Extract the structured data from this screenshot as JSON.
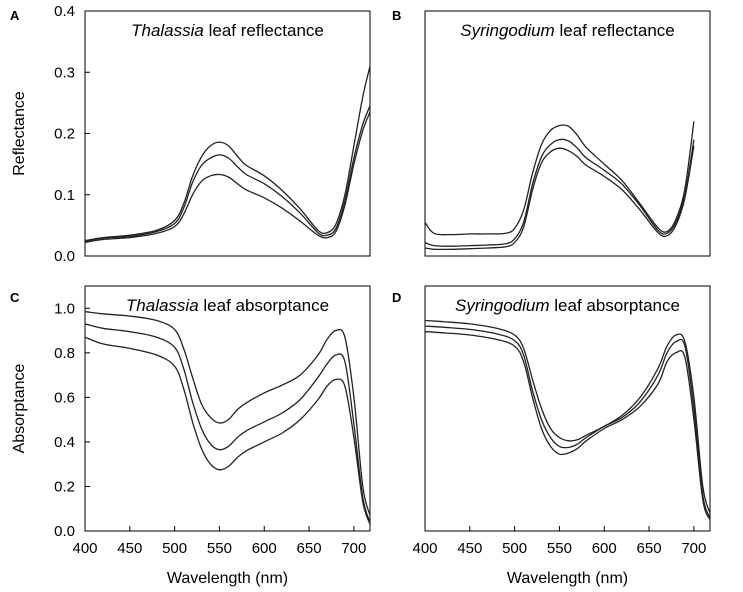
{
  "chart_data": [
    {
      "panel": "A",
      "type": "line",
      "title_genus": "Thalassia",
      "title_rest": " leaf reflectance",
      "xlabel": "",
      "ylabel": "Reflectance",
      "xlim": [
        400,
        718
      ],
      "ylim": [
        0,
        0.4
      ],
      "xticks": [],
      "yticks": [
        0.0,
        0.1,
        0.2,
        0.3,
        0.4
      ],
      "ytick_labels": [
        "0.0",
        "0.1",
        "0.2",
        "0.3",
        "0.4"
      ],
      "series": [
        {
          "name": "upper",
          "x": [
            400,
            420,
            450,
            480,
            500,
            510,
            520,
            530,
            540,
            550,
            560,
            570,
            580,
            600,
            620,
            640,
            660,
            670,
            680,
            690,
            700,
            710,
            718
          ],
          "y": [
            0.025,
            0.03,
            0.034,
            0.042,
            0.058,
            0.085,
            0.13,
            0.162,
            0.18,
            0.186,
            0.18,
            0.163,
            0.148,
            0.131,
            0.107,
            0.077,
            0.042,
            0.038,
            0.052,
            0.1,
            0.18,
            0.26,
            0.31
          ]
        },
        {
          "name": "middle",
          "x": [
            400,
            420,
            450,
            480,
            500,
            510,
            520,
            530,
            540,
            550,
            560,
            570,
            580,
            600,
            620,
            640,
            660,
            670,
            680,
            690,
            700,
            710,
            718
          ],
          "y": [
            0.024,
            0.029,
            0.032,
            0.04,
            0.053,
            0.078,
            0.12,
            0.148,
            0.16,
            0.165,
            0.16,
            0.146,
            0.133,
            0.118,
            0.097,
            0.07,
            0.038,
            0.034,
            0.045,
            0.09,
            0.16,
            0.215,
            0.245
          ]
        },
        {
          "name": "lower",
          "x": [
            400,
            420,
            450,
            480,
            500,
            510,
            520,
            530,
            540,
            550,
            560,
            570,
            580,
            600,
            620,
            640,
            660,
            670,
            680,
            690,
            700,
            710,
            718
          ],
          "y": [
            0.022,
            0.027,
            0.03,
            0.037,
            0.048,
            0.068,
            0.1,
            0.122,
            0.131,
            0.133,
            0.129,
            0.118,
            0.108,
            0.095,
            0.078,
            0.057,
            0.034,
            0.03,
            0.04,
            0.083,
            0.15,
            0.205,
            0.235
          ]
        }
      ]
    },
    {
      "panel": "B",
      "type": "line",
      "title_genus": "Syringodium",
      "title_rest": " leaf reflectance",
      "xlabel": "",
      "ylabel": "",
      "xlim": [
        400,
        718
      ],
      "ylim": [
        0,
        0.4
      ],
      "xticks": [],
      "yticks": [],
      "ytick_labels": [],
      "series": [
        {
          "name": "upper",
          "x": [
            400,
            410,
            430,
            450,
            470,
            490,
            500,
            510,
            520,
            530,
            540,
            550,
            560,
            570,
            580,
            600,
            620,
            640,
            660,
            670,
            680,
            690,
            700
          ],
          "y": [
            0.055,
            0.037,
            0.035,
            0.036,
            0.036,
            0.037,
            0.045,
            0.075,
            0.135,
            0.182,
            0.205,
            0.213,
            0.212,
            0.197,
            0.177,
            0.15,
            0.123,
            0.085,
            0.046,
            0.04,
            0.06,
            0.11,
            0.22
          ]
        },
        {
          "name": "middle",
          "x": [
            400,
            410,
            430,
            450,
            470,
            490,
            500,
            510,
            520,
            530,
            540,
            550,
            560,
            570,
            580,
            600,
            620,
            640,
            660,
            670,
            680,
            690,
            700
          ],
          "y": [
            0.022,
            0.017,
            0.016,
            0.017,
            0.018,
            0.02,
            0.028,
            0.055,
            0.117,
            0.162,
            0.182,
            0.19,
            0.188,
            0.176,
            0.16,
            0.14,
            0.117,
            0.082,
            0.042,
            0.037,
            0.055,
            0.1,
            0.19
          ]
        },
        {
          "name": "lower",
          "x": [
            400,
            410,
            430,
            450,
            470,
            490,
            500,
            510,
            520,
            530,
            540,
            550,
            560,
            570,
            580,
            600,
            620,
            640,
            660,
            670,
            680,
            690,
            700
          ],
          "y": [
            0.013,
            0.011,
            0.011,
            0.012,
            0.013,
            0.015,
            0.022,
            0.047,
            0.108,
            0.152,
            0.17,
            0.176,
            0.172,
            0.162,
            0.148,
            0.13,
            0.108,
            0.075,
            0.038,
            0.033,
            0.05,
            0.095,
            0.18
          ]
        }
      ]
    },
    {
      "panel": "C",
      "type": "line",
      "title_genus": "Thalassia",
      "title_rest": " leaf absorptance",
      "xlabel": "Wavelength (nm)",
      "ylabel": "Absorptance",
      "xlim": [
        400,
        718
      ],
      "ylim": [
        0,
        1.1
      ],
      "xticks": [
        400,
        450,
        500,
        550,
        600,
        650,
        700
      ],
      "xtick_labels": [
        "400",
        "450",
        "500",
        "550",
        "600",
        "650",
        "700"
      ],
      "yticks": [
        0.0,
        0.2,
        0.4,
        0.6,
        0.8,
        1.0
      ],
      "ytick_labels": [
        "0.0",
        "0.2",
        "0.4",
        "0.6",
        "0.8",
        "1.0"
      ],
      "series": [
        {
          "name": "upper",
          "x": [
            400,
            420,
            450,
            480,
            500,
            510,
            520,
            530,
            540,
            550,
            560,
            570,
            580,
            600,
            620,
            640,
            660,
            670,
            680,
            690,
            700,
            710,
            718
          ],
          "y": [
            0.985,
            0.975,
            0.965,
            0.945,
            0.905,
            0.82,
            0.69,
            0.57,
            0.51,
            0.485,
            0.5,
            0.545,
            0.575,
            0.62,
            0.655,
            0.7,
            0.79,
            0.86,
            0.9,
            0.87,
            0.6,
            0.2,
            0.07
          ]
        },
        {
          "name": "middle",
          "x": [
            400,
            420,
            450,
            480,
            500,
            510,
            520,
            530,
            540,
            550,
            560,
            570,
            580,
            600,
            620,
            640,
            660,
            670,
            680,
            690,
            700,
            710,
            718
          ],
          "y": [
            0.93,
            0.91,
            0.895,
            0.87,
            0.825,
            0.73,
            0.58,
            0.46,
            0.39,
            0.365,
            0.38,
            0.42,
            0.45,
            0.49,
            0.53,
            0.59,
            0.69,
            0.75,
            0.79,
            0.76,
            0.48,
            0.15,
            0.04
          ]
        },
        {
          "name": "lower",
          "x": [
            400,
            420,
            450,
            480,
            500,
            510,
            520,
            530,
            540,
            550,
            560,
            570,
            580,
            600,
            620,
            640,
            660,
            670,
            680,
            690,
            700,
            710,
            718
          ],
          "y": [
            0.87,
            0.84,
            0.82,
            0.79,
            0.74,
            0.64,
            0.49,
            0.37,
            0.3,
            0.275,
            0.29,
            0.33,
            0.36,
            0.4,
            0.44,
            0.5,
            0.59,
            0.65,
            0.68,
            0.65,
            0.42,
            0.13,
            0.03
          ]
        }
      ]
    },
    {
      "panel": "D",
      "type": "line",
      "title_genus": "Syringodium",
      "title_rest": " leaf absorptance",
      "xlabel": "Wavelength (nm)",
      "ylabel": "",
      "xlim": [
        400,
        718
      ],
      "ylim": [
        0,
        1.1
      ],
      "xticks": [
        400,
        450,
        500,
        550,
        600,
        650,
        700
      ],
      "xtick_labels": [
        "400",
        "450",
        "500",
        "550",
        "600",
        "650",
        "700"
      ],
      "yticks": [],
      "ytick_labels": [],
      "series": [
        {
          "name": "upper",
          "x": [
            400,
            420,
            450,
            480,
            500,
            510,
            520,
            530,
            540,
            550,
            560,
            570,
            580,
            600,
            620,
            640,
            660,
            670,
            680,
            690,
            700,
            710,
            718
          ],
          "y": [
            0.945,
            0.94,
            0.93,
            0.91,
            0.88,
            0.82,
            0.68,
            0.55,
            0.46,
            0.42,
            0.405,
            0.41,
            0.43,
            0.47,
            0.52,
            0.6,
            0.73,
            0.83,
            0.88,
            0.85,
            0.6,
            0.2,
            0.08
          ]
        },
        {
          "name": "middle",
          "x": [
            400,
            420,
            450,
            480,
            500,
            510,
            520,
            530,
            540,
            550,
            560,
            570,
            580,
            600,
            620,
            640,
            660,
            670,
            680,
            690,
            700,
            710,
            718
          ],
          "y": [
            0.92,
            0.915,
            0.905,
            0.885,
            0.855,
            0.79,
            0.63,
            0.5,
            0.42,
            0.38,
            0.375,
            0.39,
            0.42,
            0.47,
            0.51,
            0.58,
            0.7,
            0.8,
            0.85,
            0.83,
            0.55,
            0.16,
            0.06
          ]
        },
        {
          "name": "lower",
          "x": [
            400,
            420,
            450,
            480,
            500,
            510,
            520,
            530,
            540,
            550,
            560,
            570,
            580,
            600,
            620,
            640,
            660,
            670,
            680,
            690,
            700,
            710,
            718
          ],
          "y": [
            0.895,
            0.89,
            0.88,
            0.86,
            0.83,
            0.76,
            0.6,
            0.46,
            0.38,
            0.345,
            0.35,
            0.37,
            0.405,
            0.46,
            0.5,
            0.56,
            0.66,
            0.76,
            0.8,
            0.78,
            0.5,
            0.14,
            0.05
          ]
        }
      ]
    }
  ]
}
